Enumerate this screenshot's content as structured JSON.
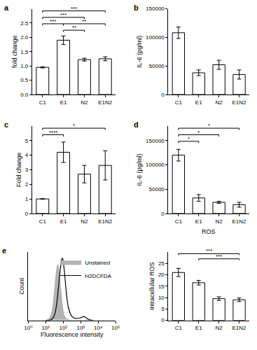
{
  "chart_data": [
    {
      "panel": "a",
      "type": "bar",
      "categories": [
        "C1",
        "E1",
        "N2",
        "E1N2"
      ],
      "values": [
        0.95,
        1.9,
        1.22,
        1.25
      ],
      "errors": [
        0.02,
        0.15,
        0.05,
        0.07
      ],
      "y_label": "fold change",
      "ylim": [
        0,
        3
      ],
      "yticks": [
        {
          "value": 0,
          "label": "0.0"
        },
        {
          "value": 0.5,
          "label": "0.5"
        },
        {
          "value": 1,
          "label": "1.0"
        },
        {
          "value": 1.5,
          "label": "1.5"
        },
        {
          "value": 2,
          "label": "2.0"
        },
        {
          "value": 2.5,
          "label": "2.5"
        }
      ],
      "color": "#ffffff",
      "grid": false,
      "significance": [
        {
          "pair": [
            "C1",
            "E1N2"
          ],
          "label": "***"
        },
        {
          "pair": [
            "C1",
            "N2"
          ],
          "label": "***"
        },
        {
          "pair": [
            "C1",
            "E1"
          ],
          "label": "***"
        },
        {
          "pair": [
            "E1",
            "E1N2"
          ],
          "label": "**"
        },
        {
          "pair": [
            "E1",
            "N2"
          ],
          "label": "**"
        }
      ]
    },
    {
      "panel": "b",
      "type": "bar",
      "categories": [
        "C1",
        "E1",
        "N2",
        "E1N2"
      ],
      "values": [
        108000,
        38000,
        52000,
        35000
      ],
      "errors": [
        10000,
        5000,
        8000,
        8000
      ],
      "y_label": "IL-6 (pg/ml)",
      "ylim": [
        0,
        150000
      ],
      "yticks": [
        0,
        50000,
        100000,
        150000
      ],
      "color": "#ffffff",
      "grid": false,
      "significance": []
    },
    {
      "panel": "c",
      "type": "bar",
      "categories": [
        "C1",
        "E1",
        "N2",
        "E1N2"
      ],
      "values": [
        1.0,
        4.2,
        2.7,
        3.3
      ],
      "errors": [
        0.02,
        0.7,
        0.6,
        1.0
      ],
      "y_label": "Fold change",
      "ylim": [
        0,
        6
      ],
      "yticks": [
        0,
        1,
        2,
        3,
        4,
        5
      ],
      "color": "#ffffff",
      "grid": false,
      "significance": [
        {
          "pair": [
            "C1",
            "E1N2"
          ],
          "label": "*"
        },
        {
          "pair": [
            "C1",
            "E1"
          ],
          "label": "****"
        }
      ]
    },
    {
      "panel": "d",
      "type": "bar",
      "categories": [
        "C1",
        "E1",
        "N2",
        "E1N2"
      ],
      "values": [
        120000,
        32000,
        23000,
        18000
      ],
      "errors": [
        12000,
        7000,
        2000,
        5000
      ],
      "y_label": "IL-6 (pg/ml)",
      "ylim": [
        0,
        180000
      ],
      "yticks": [
        0,
        50000,
        100000,
        150000
      ],
      "color": "#ffffff",
      "grid": false,
      "significance": [
        {
          "pair": [
            "C1",
            "E1N2"
          ],
          "label": "*"
        },
        {
          "pair": [
            "C1",
            "N2"
          ],
          "label": "*"
        },
        {
          "pair": [
            "C1",
            "E1"
          ],
          "label": "*"
        }
      ]
    },
    {
      "panel": "e",
      "type": "line",
      "x": [
        10,
        15,
        20,
        25,
        30,
        35,
        40,
        45,
        50,
        55,
        60,
        70,
        80,
        90,
        100,
        120,
        150,
        200,
        300,
        500,
        1000,
        1500,
        2000,
        3000,
        5000
      ],
      "series": [
        {
          "name": "Unstained",
          "type": "area",
          "color": "#b3b3b3",
          "values": [
            0,
            3,
            10,
            25,
            45,
            65,
            80,
            88,
            90,
            86,
            78,
            58,
            40,
            26,
            16,
            7,
            3,
            1,
            0,
            0,
            0,
            0,
            0,
            0,
            0
          ]
        },
        {
          "name": "H2DCFDA",
          "type": "line",
          "color": "#000000",
          "values": [
            0,
            0,
            1,
            3,
            7,
            13,
            22,
            33,
            45,
            57,
            68,
            85,
            97,
            100,
            95,
            75,
            45,
            20,
            7,
            3,
            4,
            6,
            4,
            1,
            0
          ]
        }
      ],
      "x_label": "Fluorescence intensity",
      "y_label": "Count",
      "log": "x",
      "xlim": [
        1,
        100000
      ],
      "xticks": [
        {
          "value": 1,
          "label": "10⁰"
        },
        {
          "value": 10,
          "label": "10¹"
        },
        {
          "value": 100,
          "label": "10²"
        },
        {
          "value": 1000,
          "label": "10³"
        },
        {
          "value": 10000,
          "label": "10⁴"
        },
        {
          "value": 100000,
          "label": "10⁵"
        }
      ],
      "ylim": [
        0,
        110
      ],
      "tick_labels": "x",
      "legend": "upper right",
      "grid": false
    },
    {
      "type": "bar",
      "title": "ROS",
      "categories": [
        "C1",
        "E1",
        "N2",
        "E1N2"
      ],
      "values": [
        21,
        16.5,
        9.5,
        9
      ],
      "errors": [
        1.8,
        1.0,
        0.8,
        0.8
      ],
      "y_label": "Intracellular ROS",
      "ylim": [
        0,
        30
      ],
      "yticks": [
        0,
        5,
        10,
        15,
        20,
        25
      ],
      "color": "#ffffff",
      "grid": false,
      "significance": [
        {
          "pair": [
            "C1",
            "E1N2"
          ],
          "label": "***"
        },
        {
          "pair": [
            "E1",
            "E1N2"
          ],
          "label": "***"
        }
      ]
    }
  ]
}
